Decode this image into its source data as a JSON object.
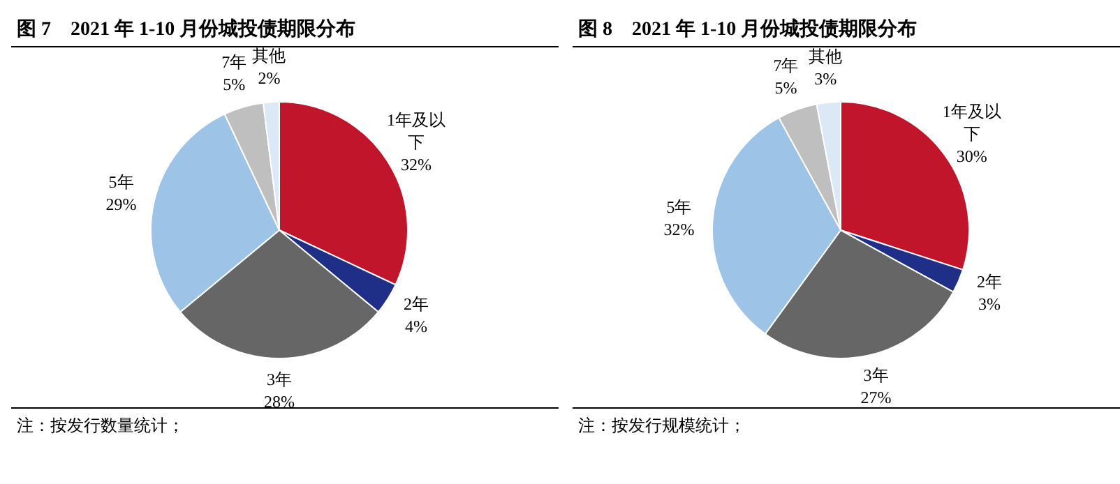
{
  "chart_data": [
    {
      "type": "pie",
      "title": "图 7　2021 年 1-10 月份城投债期限分布",
      "categories": [
        "1年及以下",
        "2年",
        "3年",
        "5年",
        "7年",
        "其他"
      ],
      "values": [
        32,
        4,
        28,
        29,
        5,
        2
      ],
      "value_labels": [
        "32%",
        "4%",
        "28%",
        "29%",
        "5%",
        "2%"
      ],
      "colors": [
        "#c0152a",
        "#1f2e87",
        "#666666",
        "#9dc3e6",
        "#bfbfbf",
        "#dbe8f5"
      ],
      "legend": false,
      "annotations": [
        "注：按发行数量统计；"
      ]
    },
    {
      "type": "pie",
      "title": "图 8　2021 年 1-10 月份城投债期限分布",
      "categories": [
        "1年及以下",
        "2年",
        "3年",
        "5年",
        "7年",
        "其他"
      ],
      "values": [
        30,
        3,
        27,
        32,
        5,
        3
      ],
      "value_labels": [
        "30%",
        "3%",
        "27%",
        "32%",
        "5%",
        "3%"
      ],
      "colors": [
        "#c0152a",
        "#1f2e87",
        "#666666",
        "#9dc3e6",
        "#bfbfbf",
        "#dbe8f5"
      ],
      "legend": false,
      "annotations": [
        "注：按发行规模统计；"
      ]
    }
  ]
}
